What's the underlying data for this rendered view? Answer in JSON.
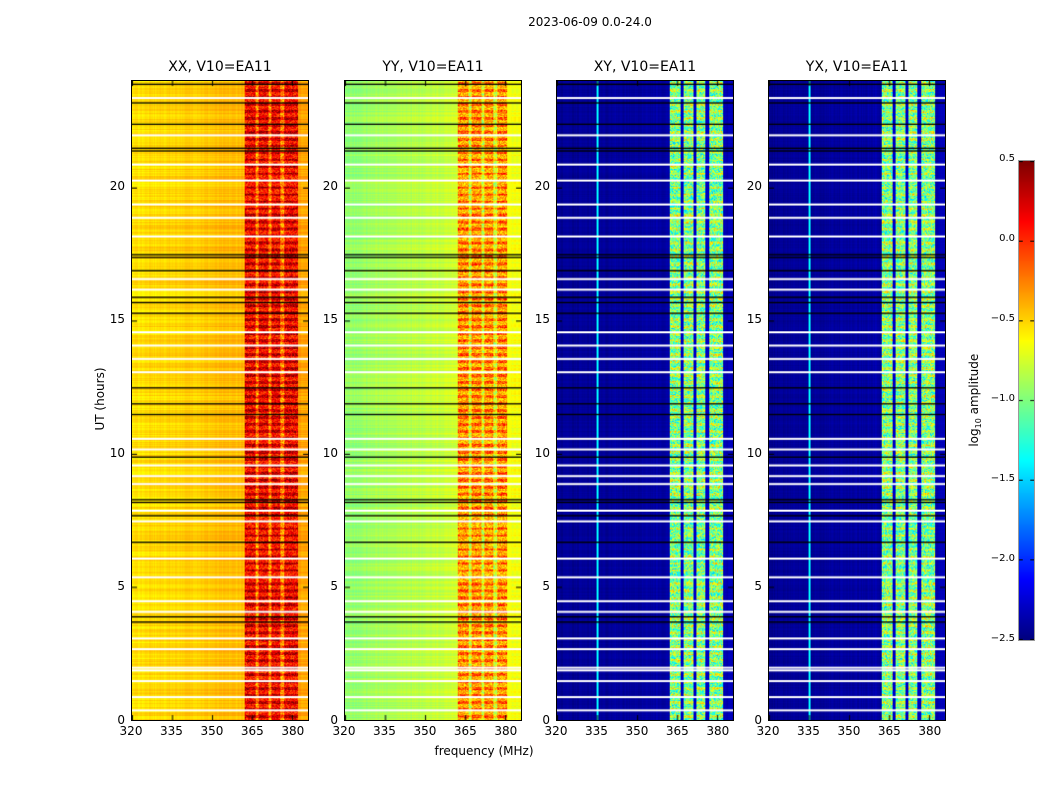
{
  "figure_title": "2023-06-09 0.0-24.0",
  "chart_data": {
    "type": "heatmap",
    "xlabel": "frequency (MHz)",
    "ylabel": "UT (hours)",
    "xlim": [
      320,
      386
    ],
    "ylim": [
      0,
      24
    ],
    "xticks": [
      "320",
      "335",
      "350",
      "365",
      "380"
    ],
    "yticks": [
      "0",
      "5",
      "10",
      "15",
      "20"
    ],
    "colorbar": {
      "label": "log10 amplitude",
      "label_main": "log",
      "label_sub": "10",
      "label_rest": " amplitude",
      "range": [
        -2.5,
        0.5
      ],
      "ticks": [
        "0.5",
        "0.0",
        "−0.5",
        "−1.0",
        "−1.5",
        "−2.0",
        "−2.5"
      ],
      "colormap": "jet"
    },
    "panels": [
      {
        "title": "XX, V10=EA11",
        "baseline_left": -0.55,
        "baseline_right": -0.35,
        "band_level": 0.15
      },
      {
        "title": "YY, V10=EA11",
        "baseline_left": -0.95,
        "baseline_right": -0.65,
        "band_level": -0.3
      },
      {
        "title": "XY, V10=EA11",
        "baseline_left": -2.45,
        "baseline_right": -2.35,
        "band_level": -1.0
      },
      {
        "title": "YX, V10=EA11",
        "baseline_left": -2.45,
        "baseline_right": -2.35,
        "band_level": -1.0
      }
    ],
    "rfi_band_mhz": [
      362,
      382
    ],
    "flagged_black_hours": [
      23.9,
      23.2,
      22.4,
      21.5,
      21.4,
      17.5,
      17.4,
      16.9,
      15.9,
      15.7,
      15.3,
      12.5,
      11.9,
      11.5,
      9.9,
      8.3,
      8.2,
      7.7,
      6.7,
      3.9,
      3.7
    ],
    "flagged_white_hours": [
      23.4,
      22.0,
      20.9,
      20.3,
      19.4,
      18.9,
      18.2,
      16.6,
      16.2,
      14.6,
      14.1,
      13.6,
      13.1,
      10.6,
      10.2,
      9.6,
      9.2,
      8.9,
      7.9,
      7.5,
      6.1,
      5.4,
      4.5,
      4.1,
      3.1,
      2.7,
      2.0,
      1.9,
      1.5,
      0.9,
      0.4
    ]
  }
}
